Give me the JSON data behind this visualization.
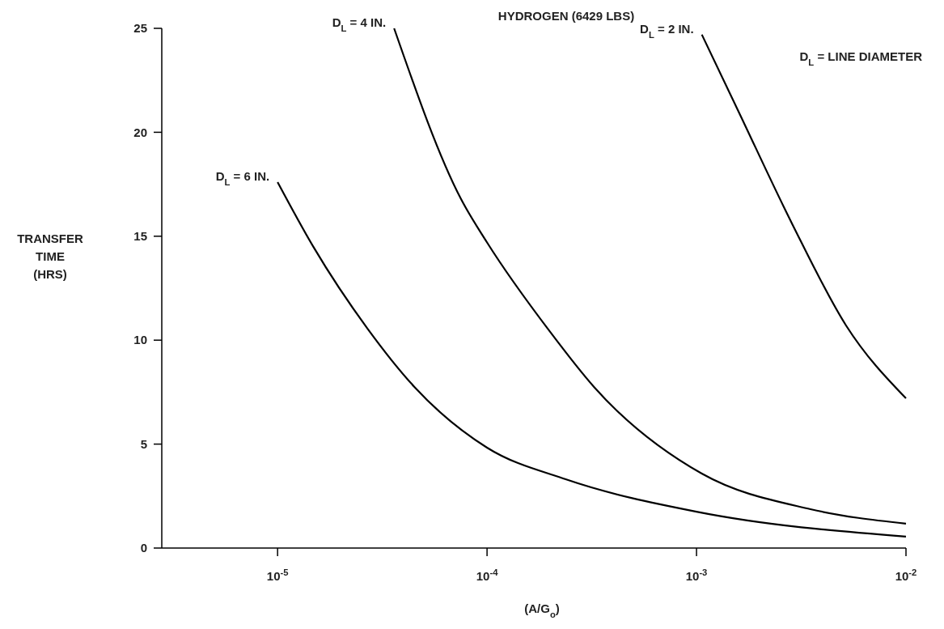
{
  "chart_data": {
    "type": "line",
    "title": "HYDROGEN (6429 LBS)",
    "xlabel": "(A/G$_{o}$)",
    "ylabel": "TRANSFER TIME (HRS)",
    "log": "x",
    "xlim": [
      2.8e-06,
      0.01
    ],
    "xticks": [
      {
        "value": 1e-05,
        "label": "10$^{-5}$"
      },
      {
        "value": 0.0001,
        "label": "10$^{-4}$"
      },
      {
        "value": 0.001,
        "label": "10$^{-3}$"
      },
      {
        "value": 0.01,
        "label": "10$^{-2}$"
      }
    ],
    "ylim": [
      0,
      25
    ],
    "yticks": [
      0,
      5,
      10,
      15,
      20,
      25
    ],
    "grid": false,
    "marker": "none",
    "line_style": "solid",
    "annotations": [
      "D$_{L}$ = LINE DIAMETER"
    ],
    "series": [
      {
        "name": "D$_{L}$ = 6 IN.",
        "color": "#000000",
        "x": [
          1e-05,
          1.48e-05,
          2.69e-05,
          4.5e-05,
          0.0001,
          0.000239,
          0.001,
          0.01
        ],
        "values": [
          17.6,
          14.5,
          10.55,
          7.75,
          4.83,
          3.3,
          1.75,
          0.55
        ]
      },
      {
        "name": "D$_{L}$ = 4 IN.",
        "color": "#000000",
        "x": [
          3.6e-05,
          7.5e-05,
          0.0001,
          0.0002,
          0.000324,
          0.00106,
          0.0035,
          0.01
        ],
        "values": [
          25,
          16.8,
          14.7,
          10.4,
          7.75,
          3.58,
          1.87,
          1.17
        ]
      },
      {
        "name": "D$_{L}$ = 2 IN.",
        "color": "#000000",
        "x": [
          0.00106,
          0.00157,
          0.00286,
          0.00518,
          0.01
        ],
        "values": [
          24.7,
          21.1,
          15.6,
          10.7,
          7.2
        ]
      }
    ]
  }
}
